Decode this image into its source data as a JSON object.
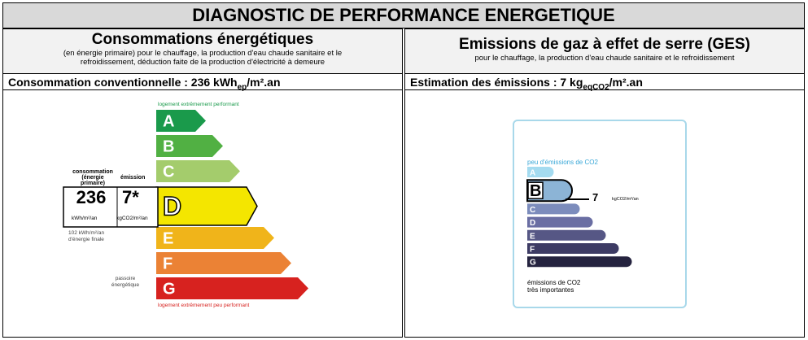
{
  "title": "DIAGNOSTIC DE PERFORMANCE ENERGETIQUE",
  "energy": {
    "heading": "Consommations énergétiques",
    "note_line1": "(en énergie primaire) pour le chauffage, la production d'eau chaude sanitaire et le",
    "note_line2": "refroidissement, déduction faite de la production d'électricité à demeure",
    "summary_prefix": "Consommation conventionnelle : 236 kWh",
    "summary_sub": "ep",
    "summary_suffix": "/m².an",
    "top_label": "logement extrêmement performant",
    "bottom_label": "logement extrêmement peu performant",
    "col_label_conso_1": "consommation",
    "col_label_conso_2": "(énergie primaire)",
    "col_label_emission": "émission",
    "value_conso": "236",
    "value_emission": "7*",
    "unit_conso": "kWh/m²/an",
    "unit_emission": "kgCO2/m²/an",
    "final_energy_1": "102 kWh/m²/an",
    "final_energy_2": "d'énergie finale",
    "passoire_1": "passoire",
    "passoire_2": "énergétique",
    "selected": "D",
    "classes": [
      {
        "letter": "A",
        "color": "#1a9a4b"
      },
      {
        "letter": "B",
        "color": "#51b043"
      },
      {
        "letter": "C",
        "color": "#a4cc6c"
      },
      {
        "letter": "D",
        "color": "#f4e600"
      },
      {
        "letter": "E",
        "color": "#f0b41a"
      },
      {
        "letter": "F",
        "color": "#eb8235"
      },
      {
        "letter": "G",
        "color": "#d7221f"
      }
    ]
  },
  "ges": {
    "heading": "Emissions de gaz à effet de serre (GES)",
    "note": "pour le chauffage, la production d'eau chaude sanitaire et le refroidissement",
    "summary_prefix": "Estimation des émissions : 7 kg",
    "summary_sub": "eqCO2",
    "summary_suffix": "/m².an",
    "top_label": "peu d'émissions de CO2",
    "bottom_label_1": "émissions de CO2",
    "bottom_label_2": "très importantes",
    "value": "7",
    "unit": "kgCO2/m²/an",
    "selected": "B",
    "classes": [
      {
        "letter": "A",
        "color": "#a4dbf0"
      },
      {
        "letter": "B",
        "color": "#8cb4d6"
      },
      {
        "letter": "C",
        "color": "#7c8cbc"
      },
      {
        "letter": "D",
        "color": "#6a6ea3"
      },
      {
        "letter": "E",
        "color": "#565785"
      },
      {
        "letter": "F",
        "color": "#3d3b64"
      },
      {
        "letter": "G",
        "color": "#25233f"
      }
    ]
  }
}
